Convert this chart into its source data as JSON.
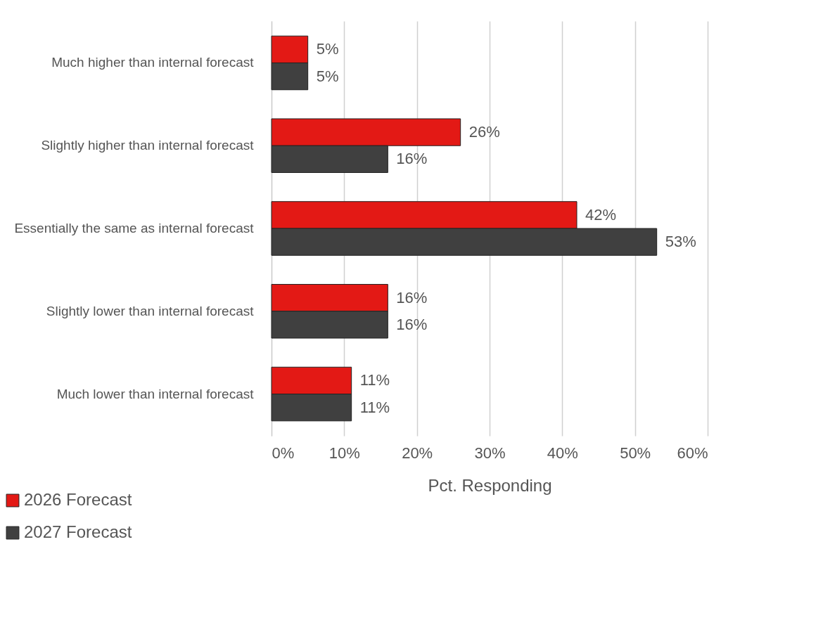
{
  "chart_data": {
    "type": "bar",
    "orientation": "horizontal",
    "xlabel": "Pct. Responding",
    "categories": [
      "Much higher than internal forecast",
      "Slightly higher than internal forecast",
      "Essentially the same as internal forecast",
      "Slightly lower than internal forecast",
      "Much lower than internal forecast"
    ],
    "series": [
      {
        "name": "2026 Forecast",
        "color": "#e31915",
        "values": [
          5,
          26,
          42,
          16,
          11
        ],
        "value_labels": [
          "5%",
          "26%",
          "42%",
          "16%",
          "11%"
        ]
      },
      {
        "name": "2027 Forecast",
        "color": "#404040",
        "values": [
          5,
          16,
          53,
          16,
          11
        ],
        "value_labels": [
          "5%",
          "16%",
          "53%",
          "16%",
          "11%"
        ]
      }
    ],
    "xlim": [
      0,
      60
    ],
    "xticks": [
      {
        "value": 0,
        "label": "0%"
      },
      {
        "value": 10,
        "label": "10%"
      },
      {
        "value": 20,
        "label": "20%"
      },
      {
        "value": 30,
        "label": "30%"
      },
      {
        "value": 40,
        "label": "40%"
      },
      {
        "value": 50,
        "label": "50%"
      },
      {
        "value": 60,
        "label": "60%"
      }
    ],
    "grid": "x",
    "legend": "bottom left"
  }
}
